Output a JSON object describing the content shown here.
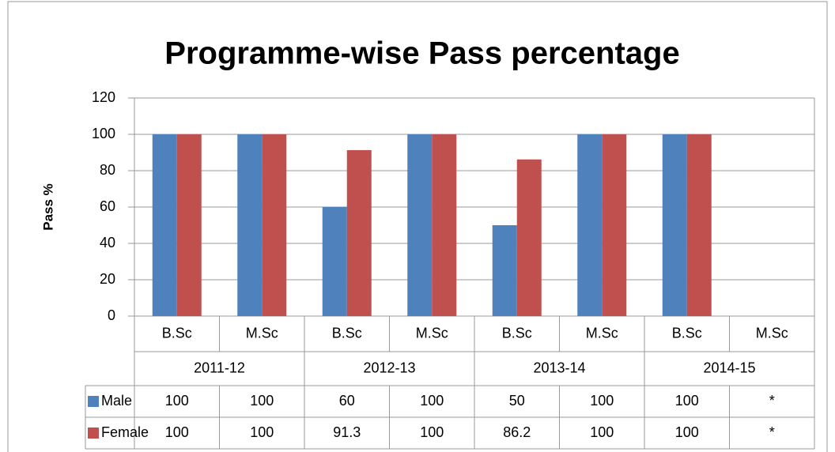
{
  "chart_data": {
    "type": "bar",
    "title": "Programme-wise Pass percentage",
    "y_label": "Pass %",
    "categories": [
      "B.Sc",
      "M.Sc",
      "B.Sc",
      "M.Sc",
      "B.Sc",
      "M.Sc",
      "B.Sc",
      "M.Sc"
    ],
    "groups": [
      "2011-12",
      "2012-13",
      "2013-14",
      "2014-15"
    ],
    "series": [
      {
        "name": "Male",
        "color": "#4f81bd",
        "values": [
          100,
          100,
          60,
          100,
          50,
          100,
          100,
          null
        ],
        "value_labels": [
          "100",
          "100",
          "60",
          "100",
          "50",
          "100",
          "100",
          "*"
        ]
      },
      {
        "name": "Female",
        "color": "#c0504d",
        "values": [
          100,
          100,
          91.3,
          100,
          86.2,
          100,
          100,
          null
        ],
        "value_labels": [
          "100",
          "100",
          "91.3",
          "100",
          "86.2",
          "100",
          "100",
          "*"
        ]
      }
    ],
    "ylim": [
      0,
      120
    ],
    "yticks": [
      0,
      20,
      40,
      60,
      80,
      100,
      120
    ],
    "grid": true
  }
}
